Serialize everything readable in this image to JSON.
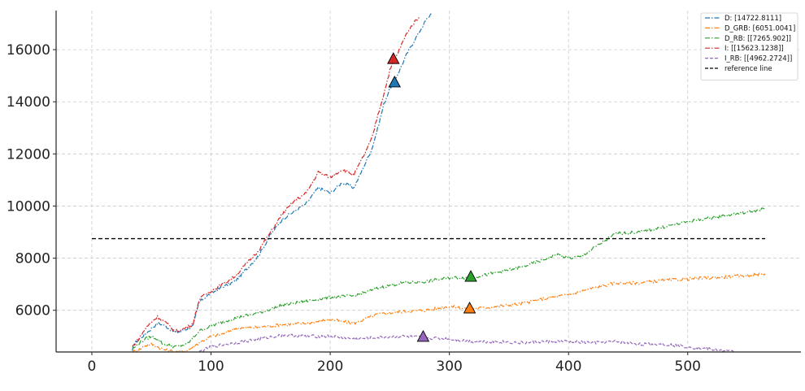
{
  "chart_data": {
    "type": "line",
    "title": "",
    "xlabel": "",
    "ylabel": "",
    "xlim": [
      -30,
      595
    ],
    "ylim": [
      4400,
      17500
    ],
    "xticks": [
      0,
      100,
      200,
      300,
      400,
      500
    ],
    "yticks": [
      6000,
      8000,
      10000,
      12000,
      14000,
      16000
    ],
    "grid": true,
    "legend_position": "top-right",
    "reference_line": {
      "name": "reference line",
      "y": 8750,
      "x_range": [
        0,
        565
      ],
      "color": "#000000"
    },
    "series": [
      {
        "name": "D: [14722.8111]",
        "color": "#1f77b4",
        "style": "dashdot",
        "marker": {
          "x": 254,
          "y": 14722.8111
        },
        "points": [
          [
            34,
            4400
          ],
          [
            35,
            4700
          ],
          [
            40,
            4900
          ],
          [
            45,
            5100
          ],
          [
            50,
            5300
          ],
          [
            55,
            5500
          ],
          [
            60,
            5450
          ],
          [
            65,
            5300
          ],
          [
            70,
            5150
          ],
          [
            75,
            5200
          ],
          [
            80,
            5300
          ],
          [
            85,
            5400
          ],
          [
            90,
            6300
          ],
          [
            95,
            6500
          ],
          [
            100,
            6650
          ],
          [
            110,
            6900
          ],
          [
            120,
            7100
          ],
          [
            130,
            7600
          ],
          [
            140,
            8100
          ],
          [
            150,
            8900
          ],
          [
            160,
            9500
          ],
          [
            170,
            9800
          ],
          [
            180,
            10100
          ],
          [
            190,
            10700
          ],
          [
            200,
            10500
          ],
          [
            210,
            10900
          ],
          [
            220,
            10700
          ],
          [
            230,
            11700
          ],
          [
            235,
            12200
          ],
          [
            240,
            13000
          ],
          [
            245,
            13900
          ],
          [
            250,
            14500
          ],
          [
            255,
            14900
          ],
          [
            260,
            15400
          ],
          [
            265,
            15900
          ],
          [
            270,
            16300
          ],
          [
            275,
            16700
          ],
          [
            280,
            17100
          ],
          [
            285,
            17400
          ]
        ]
      },
      {
        "name": "D_GRB: [6051.0041]",
        "color": "#ff7f0e",
        "style": "dashdot",
        "marker": {
          "x": 317,
          "y": 6051.0041
        },
        "points": [
          [
            34,
            4400
          ],
          [
            40,
            4500
          ],
          [
            45,
            4650
          ],
          [
            50,
            4700
          ],
          [
            55,
            4600
          ],
          [
            60,
            4500
          ],
          [
            70,
            4400
          ],
          [
            80,
            4450
          ],
          [
            90,
            4750
          ],
          [
            100,
            5000
          ],
          [
            110,
            5100
          ],
          [
            120,
            5300
          ],
          [
            140,
            5350
          ],
          [
            160,
            5450
          ],
          [
            180,
            5500
          ],
          [
            200,
            5650
          ],
          [
            220,
            5500
          ],
          [
            240,
            5850
          ],
          [
            260,
            5950
          ],
          [
            280,
            6000
          ],
          [
            300,
            6150
          ],
          [
            317,
            6050
          ],
          [
            340,
            6150
          ],
          [
            360,
            6250
          ],
          [
            380,
            6450
          ],
          [
            400,
            6600
          ],
          [
            420,
            6850
          ],
          [
            440,
            7050
          ],
          [
            460,
            7050
          ],
          [
            480,
            7150
          ],
          [
            500,
            7200
          ],
          [
            520,
            7250
          ],
          [
            540,
            7300
          ],
          [
            565,
            7400
          ]
        ]
      },
      {
        "name": "D_RB: [[7265.902]]",
        "color": "#2ca02c",
        "style": "dashdot",
        "marker": {
          "x": 318,
          "y": 7265.902
        },
        "points": [
          [
            34,
            4500
          ],
          [
            40,
            4750
          ],
          [
            45,
            4900
          ],
          [
            50,
            5000
          ],
          [
            55,
            4900
          ],
          [
            60,
            4700
          ],
          [
            70,
            4600
          ],
          [
            80,
            4700
          ],
          [
            90,
            5200
          ],
          [
            100,
            5400
          ],
          [
            120,
            5700
          ],
          [
            140,
            5900
          ],
          [
            160,
            6200
          ],
          [
            180,
            6350
          ],
          [
            200,
            6500
          ],
          [
            220,
            6550
          ],
          [
            240,
            6850
          ],
          [
            260,
            7050
          ],
          [
            280,
            7100
          ],
          [
            300,
            7250
          ],
          [
            318,
            7250
          ],
          [
            340,
            7450
          ],
          [
            360,
            7650
          ],
          [
            380,
            7950
          ],
          [
            390,
            8150
          ],
          [
            400,
            8000
          ],
          [
            410,
            8050
          ],
          [
            420,
            8350
          ],
          [
            430,
            8650
          ],
          [
            440,
            8950
          ],
          [
            460,
            9000
          ],
          [
            480,
            9200
          ],
          [
            500,
            9400
          ],
          [
            520,
            9550
          ],
          [
            540,
            9700
          ],
          [
            555,
            9800
          ],
          [
            565,
            9900
          ]
        ]
      },
      {
        "name": "I: [[15623.1238]]",
        "color": "#d62728",
        "style": "dashdot",
        "marker": {
          "x": 253,
          "y": 15623.1238
        },
        "points": [
          [
            34,
            4600
          ],
          [
            40,
            4950
          ],
          [
            45,
            5300
          ],
          [
            50,
            5550
          ],
          [
            55,
            5750
          ],
          [
            60,
            5600
          ],
          [
            65,
            5400
          ],
          [
            70,
            5200
          ],
          [
            75,
            5250
          ],
          [
            80,
            5350
          ],
          [
            85,
            5500
          ],
          [
            90,
            6400
          ],
          [
            95,
            6600
          ],
          [
            100,
            6750
          ],
          [
            110,
            7000
          ],
          [
            120,
            7300
          ],
          [
            130,
            7800
          ],
          [
            140,
            8300
          ],
          [
            150,
            9000
          ],
          [
            160,
            9700
          ],
          [
            170,
            10200
          ],
          [
            180,
            10500
          ],
          [
            190,
            11300
          ],
          [
            200,
            11100
          ],
          [
            210,
            11400
          ],
          [
            220,
            11200
          ],
          [
            230,
            12100
          ],
          [
            235,
            12600
          ],
          [
            240,
            13500
          ],
          [
            245,
            14300
          ],
          [
            250,
            15200
          ],
          [
            255,
            15700
          ],
          [
            260,
            16200
          ],
          [
            265,
            16700
          ],
          [
            270,
            17000
          ],
          [
            275,
            17300
          ]
        ]
      },
      {
        "name": "I_RB: [[4962.2724]]",
        "color": "#9467bd",
        "style": "dashed",
        "marker": {
          "x": 278,
          "y": 4962.2724
        },
        "points": [
          [
            90,
            4400
          ],
          [
            100,
            4600
          ],
          [
            120,
            4750
          ],
          [
            140,
            4900
          ],
          [
            160,
            5050
          ],
          [
            180,
            5000
          ],
          [
            200,
            5000
          ],
          [
            220,
            4900
          ],
          [
            240,
            4950
          ],
          [
            260,
            5000
          ],
          [
            278,
            4950
          ],
          [
            300,
            4900
          ],
          [
            320,
            4800
          ],
          [
            340,
            4800
          ],
          [
            360,
            4750
          ],
          [
            380,
            4800
          ],
          [
            400,
            4800
          ],
          [
            420,
            4750
          ],
          [
            440,
            4800
          ],
          [
            460,
            4700
          ],
          [
            480,
            4700
          ],
          [
            500,
            4600
          ],
          [
            520,
            4500
          ],
          [
            540,
            4400
          ]
        ]
      },
      {
        "name": "reference line",
        "color": "#000000",
        "style": "dashed",
        "points": []
      }
    ]
  }
}
